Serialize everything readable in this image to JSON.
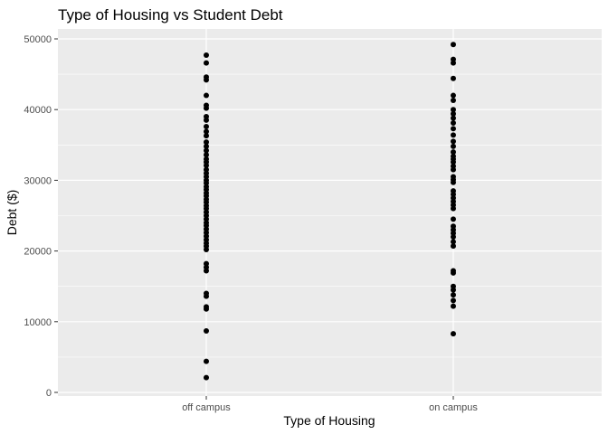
{
  "chart_data": {
    "type": "scatter",
    "title": "Type of Housing vs Student Debt",
    "xlabel": "Type of Housing",
    "ylabel": "Debt ($)",
    "categories": [
      "off campus",
      "on campus"
    ],
    "ylim": [
      0,
      50000
    ],
    "yticks": [
      0,
      10000,
      20000,
      30000,
      40000,
      50000
    ],
    "ytick_labels": [
      "0",
      "10000",
      "20000",
      "30000",
      "40000",
      "50000"
    ],
    "grid": true,
    "background": "#ebebeb",
    "grid_color": "#ffffff",
    "point_color": "#000000",
    "series": [
      {
        "category": "off campus",
        "values": [
          47700,
          46600,
          44600,
          44200,
          42000,
          40600,
          40200,
          39000,
          38500,
          37600,
          36900,
          36300,
          35400,
          34800,
          34200,
          33600,
          33000,
          32600,
          32100,
          31500,
          31000,
          30500,
          30000,
          29600,
          29100,
          28700,
          28200,
          27800,
          27300,
          26900,
          26400,
          26000,
          25500,
          25000,
          24500,
          24000,
          23600,
          23100,
          22600,
          22100,
          21600,
          21100,
          20700,
          20200,
          18200,
          17700,
          17200,
          14000,
          13600,
          12100,
          11800,
          8700,
          4400,
          2100
        ]
      },
      {
        "category": "on campus",
        "values": [
          49200,
          47100,
          46600,
          44400,
          42000,
          41300,
          40000,
          39400,
          38800,
          38100,
          37300,
          36400,
          35500,
          34800,
          34000,
          33400,
          33000,
          32600,
          32000,
          31500,
          30500,
          30100,
          29700,
          28500,
          28000,
          27500,
          27000,
          26500,
          26000,
          24500,
          23500,
          23000,
          22500,
          22000,
          21300,
          20700,
          17200,
          16900,
          15000,
          14500,
          13800,
          13000,
          12200,
          8300
        ]
      }
    ]
  }
}
